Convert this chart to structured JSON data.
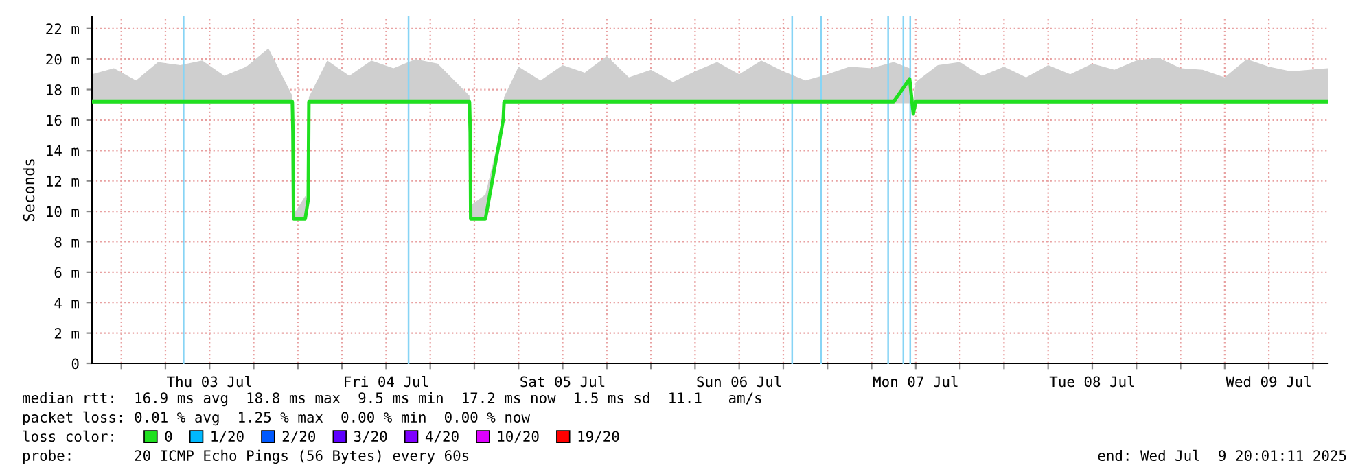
{
  "chart_data": {
    "type": "line",
    "ylabel": "Seconds",
    "x": [
      "2025-07-02T20:01",
      "2025-07-02T23:00",
      "2025-07-03T02:00",
      "2025-07-03T05:00",
      "2025-07-03T08:00",
      "2025-07-03T11:00",
      "2025-07-03T14:00",
      "2025-07-03T17:00",
      "2025-07-03T20:00",
      "2025-07-03T23:15",
      "2025-07-03T23:20",
      "2025-07-03T23:25",
      "2025-07-04T01:00",
      "2025-07-04T01:25",
      "2025-07-04T01:30",
      "2025-07-04T04:00",
      "2025-07-04T07:00",
      "2025-07-04T10:00",
      "2025-07-04T13:00",
      "2025-07-04T16:00",
      "2025-07-04T19:00",
      "2025-07-04T23:20",
      "2025-07-04T23:26",
      "2025-07-04T23:30",
      "2025-07-05T01:30",
      "2025-07-05T03:55",
      "2025-07-05T04:02",
      "2025-07-05T06:00",
      "2025-07-05T09:00",
      "2025-07-05T12:00",
      "2025-07-05T15:00",
      "2025-07-05T18:00",
      "2025-07-05T21:00",
      "2025-07-06T00:00",
      "2025-07-06T03:00",
      "2025-07-06T06:00",
      "2025-07-06T09:00",
      "2025-07-06T12:00",
      "2025-07-06T15:00",
      "2025-07-06T18:00",
      "2025-07-06T21:00",
      "2025-07-07T00:00",
      "2025-07-07T03:00",
      "2025-07-07T06:00",
      "2025-07-07T09:00",
      "2025-07-07T11:10",
      "2025-07-07T11:40",
      "2025-07-07T12:00",
      "2025-07-07T15:00",
      "2025-07-07T18:00",
      "2025-07-07T21:00",
      "2025-07-08T00:00",
      "2025-07-08T03:00",
      "2025-07-08T06:00",
      "2025-07-08T09:00",
      "2025-07-08T12:00",
      "2025-07-08T15:00",
      "2025-07-08T18:00",
      "2025-07-08T21:00",
      "2025-07-09T00:00",
      "2025-07-09T03:00",
      "2025-07-09T06:00",
      "2025-07-09T09:00",
      "2025-07-09T12:00",
      "2025-07-09T15:00",
      "2025-07-09T20:01"
    ],
    "series": [
      {
        "name": "0",
        "color": "#20e020",
        "values": [
          17.2,
          17.2,
          17.2,
          17.2,
          17.2,
          17.2,
          17.2,
          17.2,
          17.2,
          17.2,
          15.2,
          9.5,
          9.5,
          10.8,
          17.2,
          17.2,
          17.2,
          17.2,
          17.2,
          17.2,
          17.2,
          17.2,
          15.2,
          9.5,
          9.5,
          16.0,
          17.2,
          17.2,
          17.2,
          17.2,
          17.2,
          17.2,
          17.2,
          17.2,
          17.2,
          17.2,
          17.2,
          17.2,
          17.2,
          17.2,
          17.2,
          17.2,
          17.2,
          17.2,
          17.2,
          18.7,
          16.4,
          17.2,
          17.2,
          17.2,
          17.2,
          17.2,
          17.2,
          17.2,
          17.2,
          17.2,
          17.2,
          17.2,
          17.2,
          17.2,
          17.2,
          17.2,
          17.2,
          17.2,
          17.2,
          17.2
        ],
        "lower": [
          17.1,
          17.1,
          17.1,
          17.1,
          17.1,
          17.1,
          17.1,
          17.1,
          17.1,
          17.1,
          15.2,
          9.5,
          9.5,
          10.8,
          17.1,
          17.1,
          17.1,
          17.1,
          17.1,
          17.1,
          17.1,
          17.1,
          15.2,
          9.5,
          9.5,
          16.0,
          17.1,
          17.1,
          17.1,
          17.1,
          17.1,
          17.1,
          17.1,
          17.1,
          17.1,
          17.1,
          17.1,
          17.1,
          17.1,
          17.1,
          17.1,
          17.1,
          17.1,
          17.1,
          17.1,
          17.1,
          16.4,
          17.1,
          17.1,
          17.1,
          17.1,
          17.1,
          17.1,
          17.1,
          17.1,
          17.1,
          17.1,
          17.1,
          17.1,
          17.1,
          17.1,
          17.1,
          17.1,
          17.1,
          17.1,
          17.1
        ],
        "upper": [
          19.0,
          19.4,
          18.6,
          19.8,
          19.6,
          19.9,
          18.9,
          19.5,
          20.7,
          17.6,
          15.2,
          9.8,
          11.0,
          10.8,
          17.5,
          19.9,
          18.9,
          19.9,
          19.4,
          20.0,
          19.7,
          17.6,
          15.2,
          10.4,
          11.1,
          16.0,
          17.5,
          19.5,
          18.6,
          19.6,
          19.1,
          20.2,
          18.8,
          19.3,
          18.5,
          19.2,
          19.8,
          19.0,
          19.9,
          19.2,
          18.6,
          19.0,
          19.5,
          19.4,
          19.8,
          19.4,
          17.2,
          18.5,
          19.6,
          19.8,
          18.9,
          19.5,
          18.8,
          19.6,
          19.0,
          19.7,
          19.3,
          19.9,
          20.1,
          19.4,
          19.3,
          18.8,
          20.0,
          19.5,
          19.2,
          19.4
        ]
      },
      {
        "name": "1/20",
        "color": "#00b8ff",
        "values": [
          null,
          null,
          null,
          null,
          null,
          null,
          null,
          null,
          null,
          null,
          null,
          null,
          null,
          null,
          null,
          null,
          null,
          null,
          null,
          null,
          null,
          null,
          null,
          null,
          null,
          null,
          null,
          null,
          null,
          null,
          null,
          null,
          null,
          null,
          null,
          null,
          null,
          null,
          null,
          null,
          null,
          null,
          null,
          null,
          null,
          null,
          null,
          null,
          null,
          null,
          null,
          null,
          null,
          null,
          null,
          null,
          null,
          null,
          null,
          null,
          null,
          null,
          null,
          null,
          null,
          null
        ]
      },
      {
        "name": "2/20",
        "color": "#0059ff",
        "values": [
          null,
          null,
          null,
          null,
          null,
          null,
          null,
          null,
          null,
          null,
          null,
          null,
          null,
          null,
          null,
          null,
          null,
          null,
          null,
          null,
          null,
          null,
          null,
          null,
          null,
          null,
          null,
          null,
          null,
          null,
          null,
          null,
          null,
          null,
          null,
          null,
          null,
          null,
          null,
          null,
          null,
          null,
          null,
          null,
          null,
          null,
          null,
          null,
          null,
          null,
          null,
          null,
          null,
          null,
          null,
          null,
          null,
          null,
          null,
          null,
          null,
          null,
          null,
          null,
          null,
          null
        ]
      },
      {
        "name": "3/20",
        "color": "#5e00ff",
        "values": [
          null,
          null,
          null,
          null,
          null,
          null,
          null,
          null,
          null,
          null,
          null,
          null,
          null,
          null,
          null,
          null,
          null,
          null,
          null,
          null,
          null,
          null,
          null,
          null,
          null,
          null,
          null,
          null,
          null,
          null,
          null,
          null,
          null,
          null,
          null,
          null,
          null,
          null,
          null,
          null,
          null,
          null,
          null,
          null,
          null,
          null,
          null,
          null,
          null,
          null,
          null,
          null,
          null,
          null,
          null,
          null,
          null,
          null,
          null,
          null,
          null,
          null,
          null,
          null,
          null,
          null
        ]
      },
      {
        "name": "4/20",
        "color": "#7e00ff",
        "values": [
          null,
          null,
          null,
          null,
          null,
          null,
          null,
          null,
          null,
          null,
          null,
          null,
          null,
          null,
          null,
          null,
          null,
          null,
          null,
          null,
          null,
          null,
          null,
          null,
          null,
          null,
          null,
          null,
          null,
          null,
          null,
          null,
          null,
          null,
          null,
          null,
          null,
          null,
          null,
          null,
          null,
          null,
          null,
          null,
          null,
          null,
          null,
          null,
          null,
          null,
          null,
          null,
          null,
          null,
          null,
          null,
          null,
          null,
          null,
          null,
          null,
          null,
          null,
          null,
          null,
          null
        ]
      },
      {
        "name": "10/20",
        "color": "#dd00ff",
        "values": [
          null,
          null,
          null,
          null,
          null,
          null,
          null,
          null,
          null,
          null,
          null,
          null,
          null,
          null,
          null,
          null,
          null,
          null,
          null,
          null,
          null,
          null,
          null,
          null,
          null,
          null,
          null,
          null,
          null,
          null,
          null,
          null,
          null,
          null,
          null,
          null,
          null,
          null,
          null,
          null,
          null,
          null,
          null,
          null,
          null,
          null,
          null,
          null,
          null,
          null,
          null,
          null,
          null,
          null,
          null,
          null,
          null,
          null,
          null,
          null,
          null,
          null,
          null,
          null,
          null,
          null
        ]
      },
      {
        "name": "19/20",
        "color": "#ff0000",
        "values": [
          null,
          null,
          null,
          null,
          null,
          null,
          null,
          null,
          null,
          null,
          null,
          null,
          null,
          null,
          null,
          null,
          null,
          null,
          null,
          null,
          null,
          null,
          null,
          null,
          null,
          null,
          null,
          null,
          null,
          null,
          null,
          null,
          null,
          null,
          null,
          null,
          null,
          null,
          null,
          null,
          null,
          null,
          null,
          null,
          null,
          null,
          null,
          null,
          null,
          null,
          null,
          null,
          null,
          null,
          null,
          null,
          null,
          null,
          null,
          null,
          null,
          null,
          null,
          null,
          null,
          null
        ]
      }
    ],
    "xlim": [
      "2025-07-02T20:01",
      "2025-07-09T20:01"
    ],
    "xticks": [
      {
        "value": "2025-07-03T00:00",
        "label": null
      },
      {
        "value": "2025-07-03T06:00",
        "label": null
      },
      {
        "value": "2025-07-03T12:00",
        "label": "Thu 03 Jul"
      },
      {
        "value": "2025-07-03T18:00",
        "label": null
      },
      {
        "value": "2025-07-04T00:00",
        "label": null
      },
      {
        "value": "2025-07-04T06:00",
        "label": null
      },
      {
        "value": "2025-07-04T12:00",
        "label": "Fri 04 Jul"
      },
      {
        "value": "2025-07-04T18:00",
        "label": null
      },
      {
        "value": "2025-07-05T00:00",
        "label": null
      },
      {
        "value": "2025-07-05T06:00",
        "label": null
      },
      {
        "value": "2025-07-05T12:00",
        "label": "Sat 05 Jul"
      },
      {
        "value": "2025-07-05T18:00",
        "label": null
      },
      {
        "value": "2025-07-06T00:00",
        "label": null
      },
      {
        "value": "2025-07-06T06:00",
        "label": null
      },
      {
        "value": "2025-07-06T12:00",
        "label": "Sun 06 Jul"
      },
      {
        "value": "2025-07-06T18:00",
        "label": null
      },
      {
        "value": "2025-07-07T00:00",
        "label": null
      },
      {
        "value": "2025-07-07T06:00",
        "label": null
      },
      {
        "value": "2025-07-07T12:00",
        "label": "Mon 07 Jul"
      },
      {
        "value": "2025-07-07T18:00",
        "label": null
      },
      {
        "value": "2025-07-08T00:00",
        "label": null
      },
      {
        "value": "2025-07-08T06:00",
        "label": null
      },
      {
        "value": "2025-07-08T12:00",
        "label": "Tue 08 Jul"
      },
      {
        "value": "2025-07-08T18:00",
        "label": null
      },
      {
        "value": "2025-07-09T00:00",
        "label": null
      },
      {
        "value": "2025-07-09T06:00",
        "label": null
      },
      {
        "value": "2025-07-09T12:00",
        "label": "Wed 09 Jul"
      },
      {
        "value": "2025-07-09T18:00",
        "label": null
      }
    ],
    "ylim": [
      0,
      22.8
    ],
    "yticks": [
      0,
      {
        "value": 2,
        "label": "2 m"
      },
      {
        "value": 4,
        "label": "4 m"
      },
      {
        "value": 6,
        "label": "6 m"
      },
      {
        "value": 8,
        "label": "8 m"
      },
      {
        "value": 10,
        "label": "10 m"
      },
      {
        "value": 12,
        "label": "12 m"
      },
      {
        "value": 14,
        "label": "14 m"
      },
      {
        "value": 16,
        "label": "16 m"
      },
      {
        "value": 18,
        "label": "18 m"
      },
      {
        "value": 20,
        "label": "20 m"
      },
      {
        "value": 22,
        "label": "22 m"
      }
    ],
    "ref_lines": [
      {
        "axis": "x",
        "value": "2025-07-03T08:28",
        "color": "#87d4f5"
      },
      {
        "axis": "x",
        "value": "2025-07-04T15:03",
        "color": "#87d4f5"
      },
      {
        "axis": "x",
        "value": "2025-07-06T19:12",
        "color": "#87d4f5"
      },
      {
        "axis": "x",
        "value": "2025-07-06T23:08",
        "color": "#87d4f5"
      },
      {
        "axis": "x",
        "value": "2025-07-07T08:15",
        "color": "#87d4f5"
      },
      {
        "axis": "x",
        "value": "2025-07-07T10:19",
        "color": "#87d4f5"
      },
      {
        "axis": "x",
        "value": "2025-07-07T11:15",
        "color": "#87d4f5"
      }
    ],
    "grid": true,
    "legend": "bottom",
    "legend_title": "loss color:",
    "annotations": [
      "median rtt:  16.9 ms avg  18.8 ms max  9.5 ms min  17.2 ms now  1.5 ms sd  11.1   am/s",
      "packet loss: 0.01 % avg  1.25 % max  0.00 % min  0.00 % now",
      "probe:       20 ICMP Echo Pings (56 Bytes) every 60s",
      "end: Wed Jul  9 20:01:11 2025"
    ]
  }
}
